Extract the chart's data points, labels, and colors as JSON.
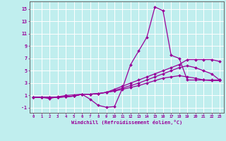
{
  "xlabel": "Windchill (Refroidissement éolien,°C)",
  "xlim": [
    -0.5,
    23.5
  ],
  "ylim": [
    -1.8,
    16.2
  ],
  "yticks": [
    -1,
    1,
    3,
    5,
    7,
    9,
    11,
    13,
    15
  ],
  "xticks": [
    0,
    1,
    2,
    3,
    4,
    5,
    6,
    7,
    8,
    9,
    10,
    11,
    12,
    13,
    14,
    15,
    16,
    17,
    18,
    19,
    20,
    21,
    22,
    23
  ],
  "background_color": "#c0eeee",
  "grid_color": "#ffffff",
  "line_color": "#990099",
  "spine_color": "#666666",
  "series": [
    [
      0.7,
      0.7,
      0.5,
      0.8,
      1.0,
      1.1,
      1.2,
      0.4,
      -0.6,
      -0.9,
      -0.8,
      2.2,
      6.0,
      8.2,
      10.4,
      15.3,
      14.7,
      7.5,
      7.0,
      3.5,
      3.5,
      3.5,
      3.5,
      3.5
    ],
    [
      0.7,
      0.7,
      0.7,
      0.7,
      0.8,
      0.9,
      1.2,
      1.2,
      1.3,
      1.5,
      2.0,
      2.5,
      3.0,
      3.5,
      4.0,
      4.5,
      5.0,
      5.5,
      6.0,
      6.8,
      6.8,
      6.8,
      6.8,
      6.5
    ],
    [
      0.7,
      0.7,
      0.7,
      0.7,
      0.8,
      0.9,
      1.2,
      1.2,
      1.3,
      1.5,
      1.8,
      2.2,
      2.6,
      3.0,
      3.5,
      4.0,
      4.5,
      5.0,
      5.5,
      5.8,
      5.5,
      5.0,
      4.5,
      3.5
    ],
    [
      0.7,
      0.7,
      0.7,
      0.7,
      0.8,
      0.9,
      1.2,
      1.2,
      1.3,
      1.5,
      1.7,
      2.0,
      2.3,
      2.6,
      3.0,
      3.4,
      3.8,
      4.0,
      4.2,
      4.0,
      3.8,
      3.5,
      3.4,
      3.4
    ]
  ]
}
